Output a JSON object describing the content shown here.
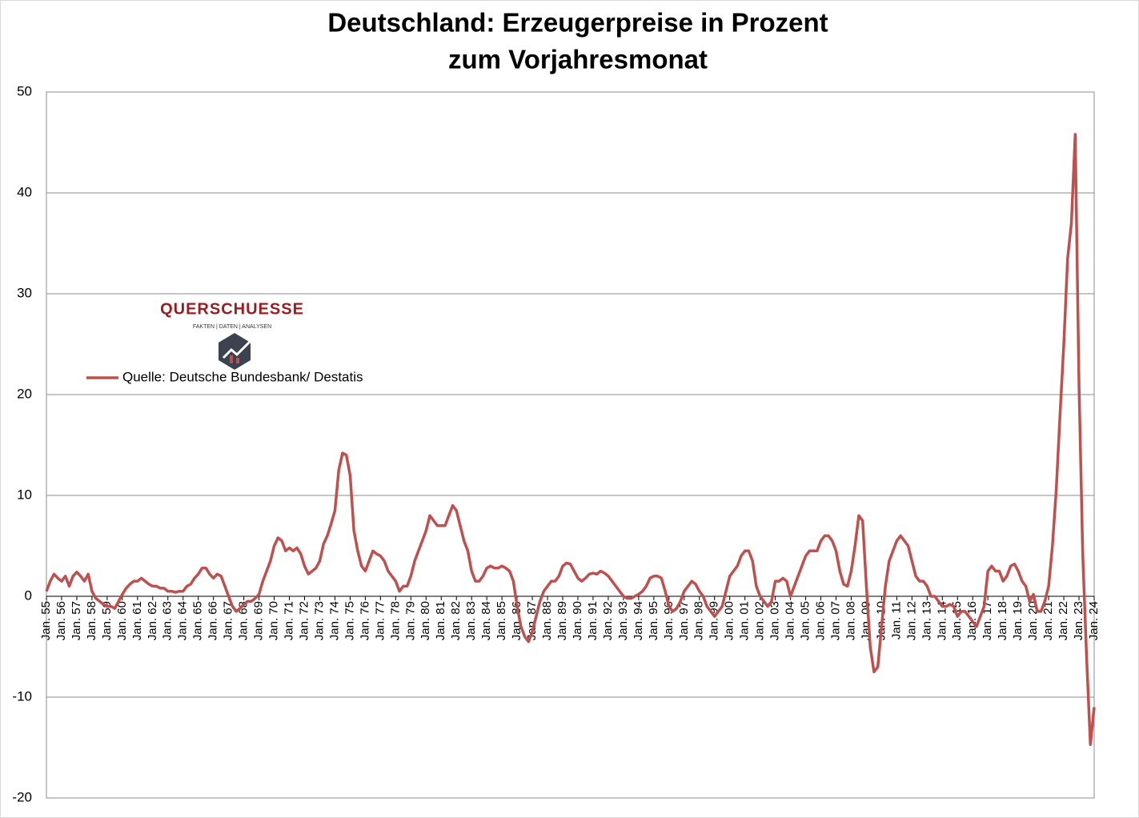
{
  "chart_data": {
    "type": "line",
    "title": "Deutschland: Erzeugerpreise in Prozent",
    "subtitle": "zum Vorjahresmonat",
    "logo": {
      "name": "QUERSCHUESSE",
      "tagline": "FAKTEN | DATEN | ANALYSEN"
    },
    "categories": [
      "Jan. 55",
      null,
      null,
      null,
      "Jan. 56",
      null,
      null,
      null,
      "Jan. 57",
      null,
      null,
      null,
      "Jan. 58",
      null,
      null,
      null,
      "Jan. 59",
      null,
      null,
      null,
      "Jan. 60",
      null,
      null,
      null,
      "Jan. 61",
      null,
      null,
      null,
      "Jan. 62",
      null,
      null,
      null,
      "Jan. 63",
      null,
      null,
      null,
      "Jan. 64",
      null,
      null,
      null,
      "Jan. 65",
      null,
      null,
      null,
      "Jan. 66",
      null,
      null,
      null,
      "Jan. 67",
      null,
      null,
      null,
      "Jan. 68",
      null,
      null,
      null,
      "Jan. 69",
      null,
      null,
      null,
      "Jan. 70",
      null,
      null,
      null,
      "Jan. 71",
      null,
      null,
      null,
      "Jan. 72",
      null,
      null,
      null,
      "Jan. 73",
      null,
      null,
      null,
      "Jan. 74",
      null,
      null,
      null,
      "Jan. 75",
      null,
      null,
      null,
      "Jan. 76",
      null,
      null,
      null,
      "Jan. 77",
      null,
      null,
      null,
      "Jan. 78",
      null,
      null,
      null,
      "Jan. 79",
      null,
      null,
      null,
      "Jan. 80",
      null,
      null,
      null,
      "Jan. 81",
      null,
      null,
      null,
      "Jan. 82",
      null,
      null,
      null,
      "Jan. 83",
      null,
      null,
      null,
      "Jan. 84",
      null,
      null,
      null,
      "Jan. 85",
      null,
      null,
      null,
      "Jan. 86",
      null,
      null,
      null,
      "Jan. 87",
      null,
      null,
      null,
      "Jan. 88",
      null,
      null,
      null,
      "Jan. 89",
      null,
      null,
      null,
      "Jan. 90",
      null,
      null,
      null,
      "Jan. 91",
      null,
      null,
      null,
      "Jan. 92",
      null,
      null,
      null,
      "Jan. 93",
      null,
      null,
      null,
      "Jan. 94",
      null,
      null,
      null,
      "Jan. 95",
      null,
      null,
      null,
      "Jan. 96",
      null,
      null,
      null,
      "Jan. 97",
      null,
      null,
      null,
      "Jan. 98",
      null,
      null,
      null,
      "Jan. 99",
      null,
      null,
      null,
      "Jan. 00",
      null,
      null,
      null,
      "Jan. 01",
      null,
      null,
      null,
      "Jan. 02",
      null,
      null,
      null,
      "Jan. 03",
      null,
      null,
      null,
      "Jan. 04",
      null,
      null,
      null,
      "Jan. 05",
      null,
      null,
      null,
      "Jan. 06",
      null,
      null,
      null,
      "Jan. 07",
      null,
      null,
      null,
      "Jan. 08",
      null,
      null,
      null,
      "Jan. 09",
      null,
      null,
      null,
      "Jan. 10",
      null,
      null,
      null,
      "Jan. 11",
      null,
      null,
      null,
      "Jan. 12",
      null,
      null,
      null,
      "Jan. 13",
      null,
      null,
      null,
      "Jan. 14",
      null,
      null,
      null,
      "Jan. 15",
      null,
      null,
      null,
      "Jan. 16",
      null,
      null,
      null,
      "Jan. 17",
      null,
      null,
      null,
      "Jan. 18",
      null,
      null,
      null,
      "Jan. 19",
      null,
      null,
      null,
      "Jan. 20",
      null,
      null,
      null,
      "Jan. 21",
      null,
      null,
      null,
      "Jan. 22",
      null,
      null,
      null,
      "Jan. 23",
      null,
      null,
      null,
      "Jan. 24"
    ],
    "series": [
      {
        "name": "Quelle: Deutsche Bundesbank/ Destatis",
        "color": "#c0504d",
        "values": [
          0.5,
          1.5,
          2.2,
          1.8,
          1.5,
          2.0,
          1.0,
          2.0,
          2.4,
          2.0,
          1.5,
          2.2,
          0.5,
          -0.2,
          -0.5,
          -0.8,
          -1.0,
          -1.0,
          -1.2,
          -0.5,
          0.2,
          0.8,
          1.2,
          1.5,
          1.5,
          1.8,
          1.5,
          1.2,
          1.0,
          1.0,
          0.8,
          0.8,
          0.5,
          0.5,
          0.4,
          0.5,
          0.5,
          1.0,
          1.2,
          1.8,
          2.2,
          2.8,
          2.8,
          2.2,
          1.8,
          2.2,
          2.0,
          1.0,
          0.0,
          -1.0,
          -1.5,
          -1.2,
          -0.8,
          -0.5,
          -0.5,
          -0.2,
          0.2,
          1.5,
          2.5,
          3.5,
          5.0,
          5.8,
          5.5,
          4.5,
          4.8,
          4.5,
          4.8,
          4.2,
          3.0,
          2.2,
          2.5,
          2.8,
          3.5,
          5.2,
          6.0,
          7.2,
          8.5,
          12.5,
          14.2,
          14.0,
          12.0,
          6.5,
          4.5,
          3.0,
          2.5,
          3.5,
          4.5,
          4.2,
          4.0,
          3.5,
          2.5,
          2.0,
          1.5,
          0.5,
          1.0,
          1.0,
          2.0,
          3.5,
          4.5,
          5.5,
          6.5,
          8.0,
          7.5,
          7.0,
          7.0,
          7.0,
          8.0,
          9.0,
          8.5,
          7.0,
          5.5,
          4.5,
          2.5,
          1.5,
          1.5,
          2.0,
          2.8,
          3.0,
          2.8,
          2.8,
          3.0,
          2.8,
          2.5,
          1.5,
          -1.0,
          -3.0,
          -4.0,
          -4.5,
          -3.5,
          -2.0,
          -0.5,
          0.5,
          1.0,
          1.5,
          1.5,
          2.0,
          3.0,
          3.3,
          3.2,
          2.5,
          1.8,
          1.5,
          1.8,
          2.2,
          2.3,
          2.2,
          2.5,
          2.3,
          2.0,
          1.5,
          1.0,
          0.5,
          0.0,
          -0.2,
          -0.2,
          0.0,
          0.2,
          0.5,
          1.0,
          1.8,
          2.0,
          2.0,
          1.8,
          0.5,
          -1.0,
          -1.5,
          -1.2,
          -0.5,
          0.5,
          1.0,
          1.5,
          1.2,
          0.5,
          0.0,
          -1.0,
          -1.5,
          -2.0,
          -1.5,
          -1.0,
          0.5,
          2.0,
          2.5,
          3.0,
          4.0,
          4.5,
          4.5,
          3.5,
          1.0,
          0.0,
          -0.5,
          -1.0,
          -0.5,
          1.5,
          1.5,
          1.8,
          1.5,
          0.0,
          1.0,
          2.0,
          3.0,
          4.0,
          4.5,
          4.5,
          4.5,
          5.5,
          6.0,
          6.0,
          5.5,
          4.5,
          2.5,
          1.2,
          1.0,
          2.5,
          5.0,
          8.0,
          7.5,
          1.0,
          -5.0,
          -7.5,
          -7.0,
          -3.0,
          1.0,
          3.5,
          4.5,
          5.5,
          6.0,
          5.5,
          5.0,
          3.5,
          2.0,
          1.5,
          1.5,
          1.0,
          0.0,
          0.0,
          -0.5,
          -1.0,
          -1.0,
          -0.8,
          -1.0,
          -2.0,
          -1.5,
          -1.5,
          -2.0,
          -2.5,
          -3.0,
          -2.0,
          -1.0,
          2.5,
          3.0,
          2.5,
          2.5,
          1.5,
          2.0,
          3.0,
          3.2,
          2.5,
          1.5,
          1.0,
          -0.5,
          0.2,
          -1.5,
          -1.5,
          -0.5,
          1.0,
          5.0,
          10.5,
          18.0,
          25.0,
          33.5,
          37.0,
          45.8,
          21.0,
          4.0,
          -6.0,
          -14.7,
          -11.0
        ]
      }
    ],
    "ylim": [
      -20,
      50
    ],
    "yticks": [
      -20,
      -10,
      0,
      10,
      20,
      30,
      40,
      50
    ],
    "grid": true,
    "legend": "left"
  }
}
